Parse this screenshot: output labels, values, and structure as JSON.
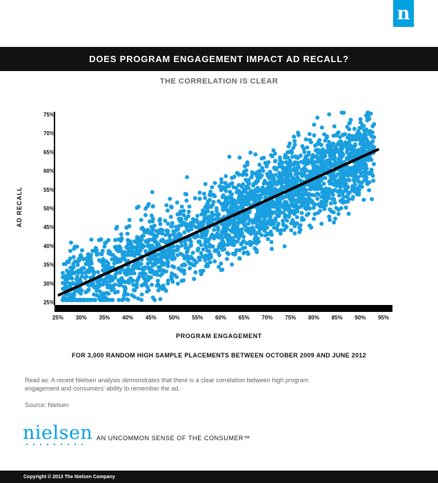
{
  "header": {
    "logo_glyph": "n",
    "title": "DOES PROGRAM ENGAGEMENT IMPACT AD RECALL?",
    "subtitle": "THE CORRELATION IS CLEAR"
  },
  "chart_data": {
    "type": "scatter",
    "xlabel": "PROGRAM ENGAGEMENT",
    "ylabel": "AD RECALL",
    "xlim": [
      25,
      95
    ],
    "ylim": [
      25,
      75
    ],
    "x_ticks": [
      "25%",
      "30%",
      "35%",
      "40%",
      "45%",
      "50%",
      "55%",
      "60%",
      "65%",
      "70%",
      "75%",
      "80%",
      "85%",
      "90%",
      "95%"
    ],
    "y_ticks": [
      "25%",
      "30%",
      "35%",
      "40%",
      "45%",
      "50%",
      "55%",
      "60%",
      "65%",
      "70%",
      "75%"
    ],
    "point_count": 3000,
    "point_color": "#1a9fe0",
    "trendline": {
      "x": [
        25,
        94
      ],
      "y": [
        26.8,
        65.8
      ],
      "color": "#000000"
    },
    "footnote": "FOR 3,000 RANDOM HIGH SAMPLE PLACEMENTS BETWEEN OCTOBER 2009 AND JUNE 2012"
  },
  "notes": {
    "read_as": "Read as: A recent Nielsen analysis demonstrates that there is a clear correlation between high program engagement and consumers' ability to remember the ad.",
    "source": "Source: Nielsen"
  },
  "brand": {
    "name": "nielsen",
    "tagline": "AN UNCOMMON SENSE OF THE CONSUMER™",
    "copyright": "Copyright © 2013 The Nielsen Company"
  },
  "colors": {
    "accent": "#00a1e0",
    "dark": "#121212"
  }
}
